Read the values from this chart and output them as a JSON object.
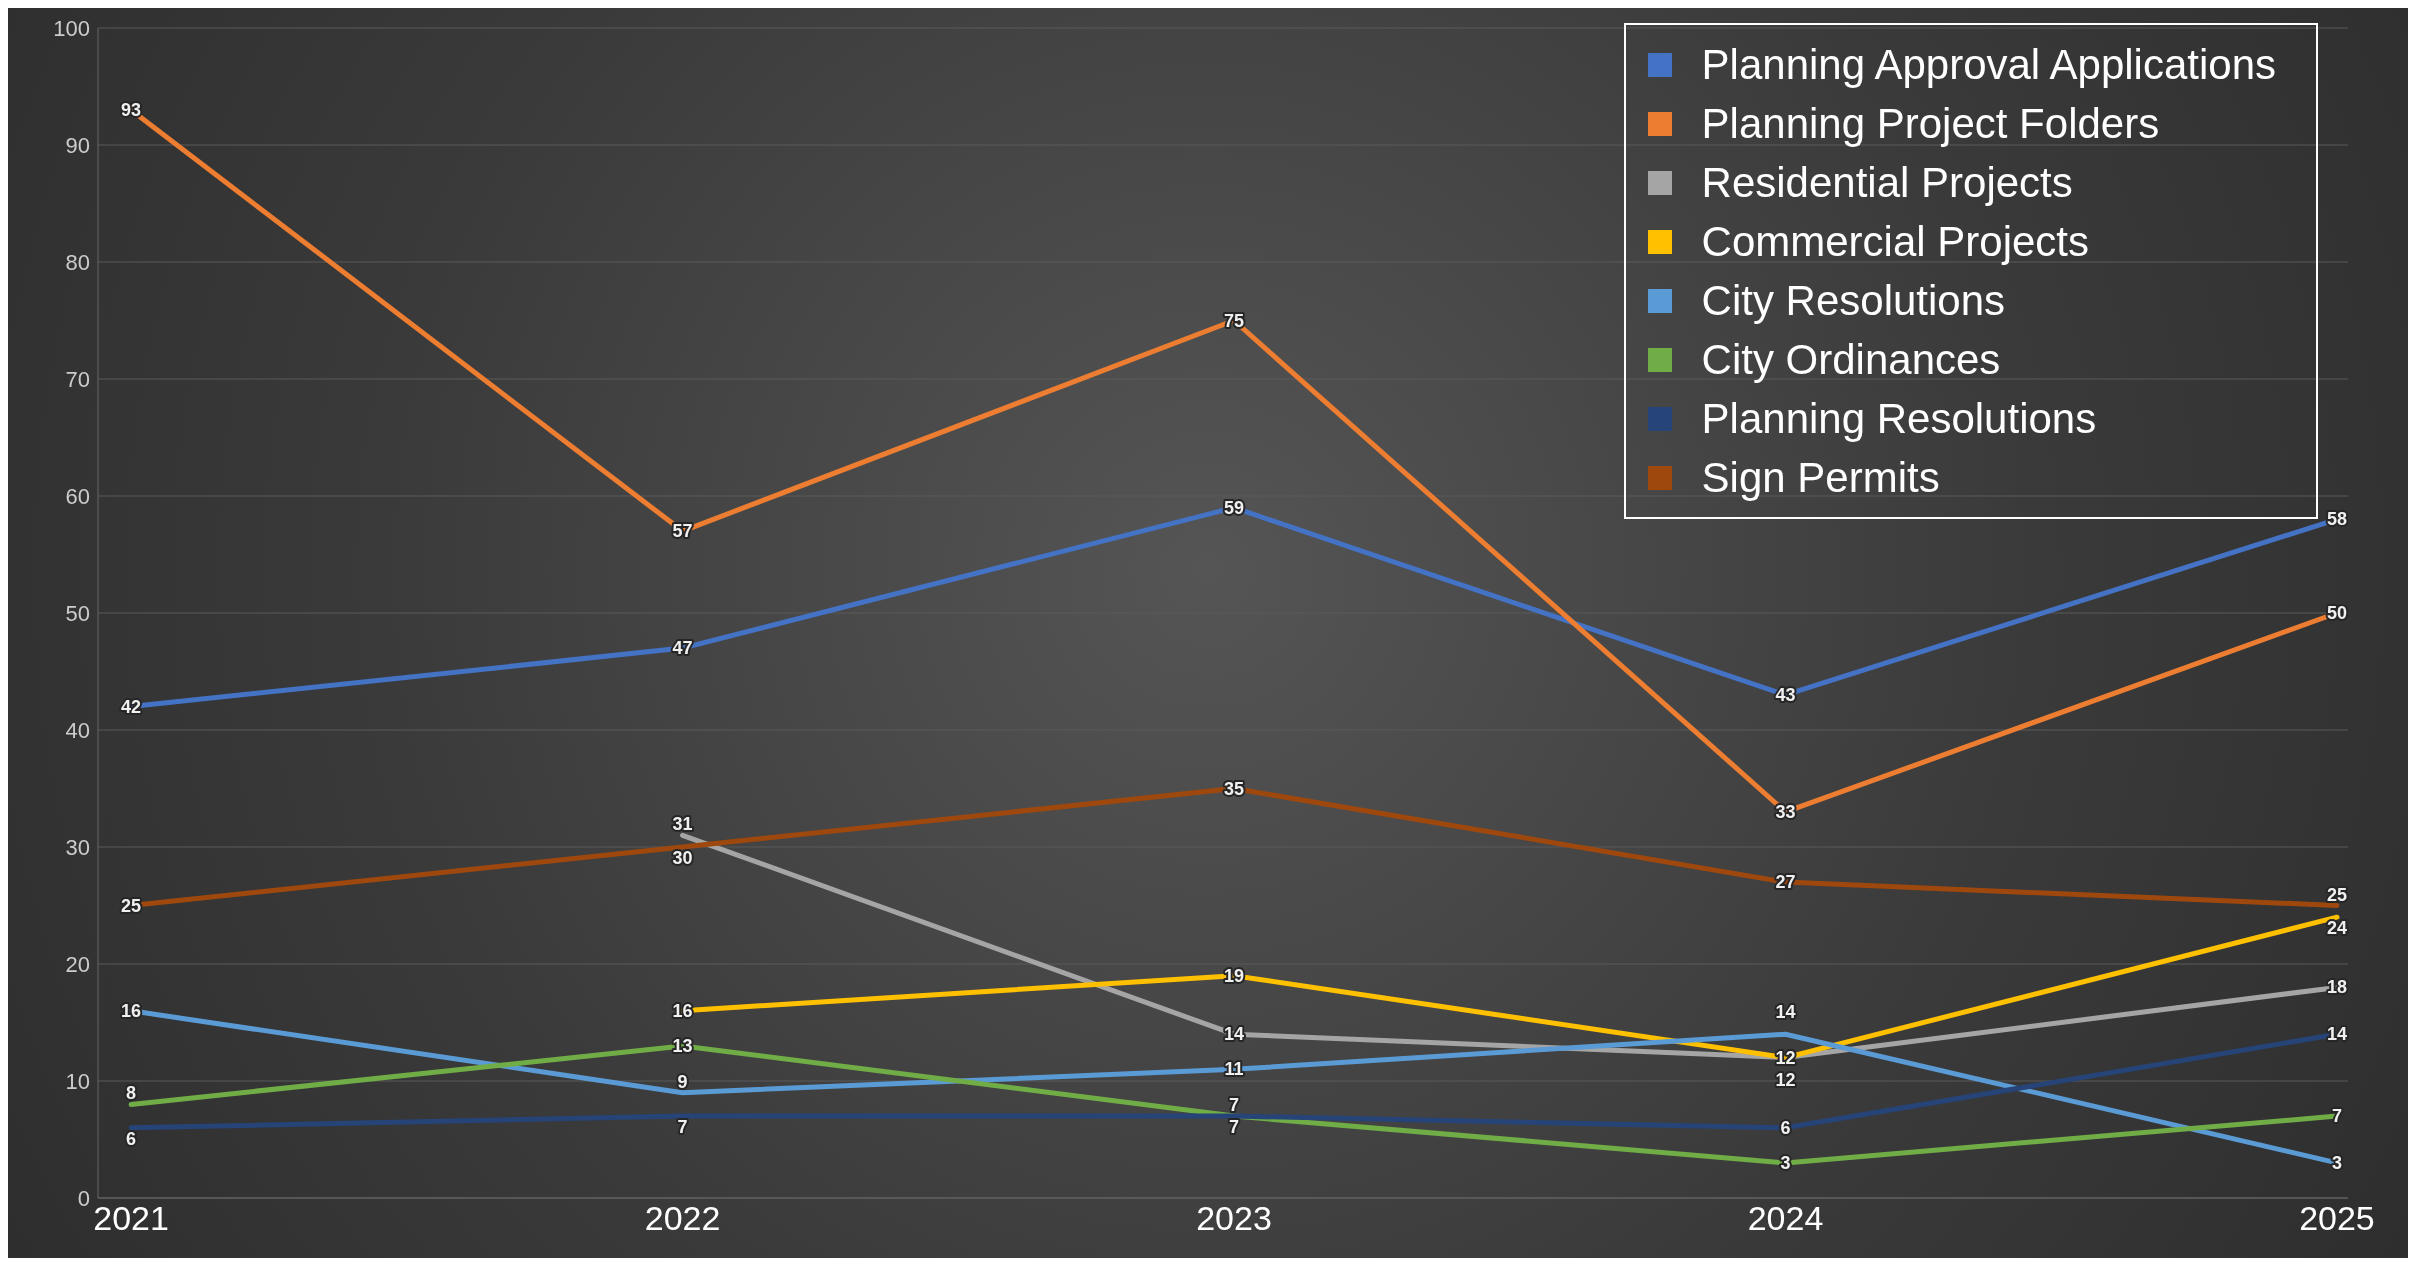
{
  "chart_data": {
    "type": "line",
    "categories": [
      "2021",
      "2022",
      "2023",
      "2024",
      "2025"
    ],
    "series": [
      {
        "name": "Planning Approval Applications",
        "color": "#4472c4",
        "values": [
          42,
          47,
          59,
          43,
          58
        ]
      },
      {
        "name": "Planning Project Folders",
        "color": "#ed7d31",
        "values": [
          93,
          57,
          75,
          33,
          50
        ]
      },
      {
        "name": "Residential Projects",
        "color": "#a5a5a5",
        "values": [
          null,
          31,
          14,
          12,
          18
        ]
      },
      {
        "name": "Commercial Projects",
        "color": "#ffc000",
        "values": [
          null,
          16,
          19,
          12,
          24
        ]
      },
      {
        "name": "City Resolutions",
        "color": "#5b9bd5",
        "values": [
          16,
          9,
          11,
          14,
          3
        ]
      },
      {
        "name": "City Ordinances",
        "color": "#70ad47",
        "values": [
          8,
          13,
          7,
          3,
          7
        ]
      },
      {
        "name": "Planning Resolutions",
        "color": "#264478",
        "values": [
          6,
          7,
          7,
          6,
          14
        ]
      },
      {
        "name": "Sign Permits",
        "color": "#9e480e",
        "values": [
          25,
          30,
          35,
          27,
          25
        ]
      }
    ],
    "ylim": [
      0,
      100
    ],
    "yticks": [
      0,
      10,
      20,
      30,
      40,
      50,
      60,
      70,
      80,
      90,
      100
    ],
    "grid": "y",
    "legend": "top right",
    "data_labels": true,
    "line_style": "solid"
  }
}
